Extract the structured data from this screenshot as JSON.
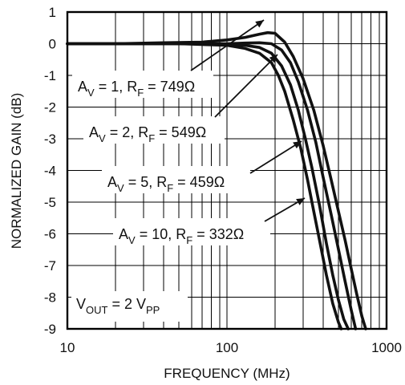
{
  "chart_data": {
    "type": "line",
    "xlabel": "FREQUENCY (MHz)",
    "ylabel": "NORMALIZED GAIN (dB)",
    "xscale": "log",
    "xlim": [
      10,
      1000
    ],
    "ylim": [
      -9,
      1
    ],
    "grid": true,
    "x_ticks": [
      10,
      100,
      1000
    ],
    "x_tick_labels": [
      "10",
      "100",
      "1000"
    ],
    "y_ticks": [
      1,
      0,
      -1,
      -2,
      -3,
      -4,
      -5,
      -6,
      -7,
      -8,
      -9
    ],
    "y_tick_labels": [
      "1",
      "0",
      "-1",
      "-2",
      "-3",
      "-4",
      "-5",
      "-6",
      "-7",
      "-8",
      "-9"
    ],
    "condition": {
      "main": "V",
      "sub": "OUT",
      "middle": " = 2 V",
      "tail": "PP"
    },
    "series": [
      {
        "av": "1",
        "rf": "749Ω",
        "x": [
          10,
          20,
          40,
          70,
          100,
          130,
          160,
          180,
          200,
          230,
          260,
          300,
          350,
          400,
          450,
          500,
          550,
          600,
          650,
          700,
          740
        ],
        "y": [
          0,
          0,
          0.03,
          0.05,
          0.12,
          0.2,
          0.3,
          0.35,
          0.33,
          0.05,
          -0.4,
          -1.1,
          -2.1,
          -3.2,
          -4.3,
          -5.3,
          -6.2,
          -7.1,
          -7.9,
          -8.6,
          -9
        ]
      },
      {
        "av": "2",
        "rf": "549Ω",
        "x": [
          10,
          50,
          100,
          130,
          160,
          190,
          220,
          250,
          280,
          320,
          360,
          400,
          450,
          500,
          550,
          600,
          640
        ],
        "y": [
          0,
          0,
          0,
          0.02,
          0.03,
          0,
          -0.2,
          -0.6,
          -1.2,
          -2.1,
          -3.1,
          -4.2,
          -5.4,
          -6.5,
          -7.5,
          -8.4,
          -9
        ]
      },
      {
        "av": "5",
        "rf": "459Ω",
        "x": [
          10,
          50,
          100,
          130,
          160,
          190,
          220,
          250,
          280,
          310,
          340,
          380,
          420,
          460,
          500,
          540,
          575
        ],
        "y": [
          0,
          0,
          -0.02,
          -0.05,
          -0.12,
          -0.3,
          -0.7,
          -1.3,
          -2.1,
          -3.0,
          -3.9,
          -5.1,
          -6.3,
          -7.3,
          -8.1,
          -8.7,
          -9
        ]
      },
      {
        "av": "10",
        "rf": "332Ω",
        "x": [
          10,
          50,
          100,
          130,
          160,
          190,
          210,
          230,
          260,
          290,
          320,
          350,
          380,
          420,
          460,
          500,
          520
        ],
        "y": [
          0,
          0,
          -0.05,
          -0.15,
          -0.3,
          -0.6,
          -1.0,
          -1.5,
          -2.4,
          -3.3,
          -4.3,
          -5.3,
          -6.2,
          -7.3,
          -8.2,
          -8.8,
          -9
        ]
      }
    ]
  }
}
